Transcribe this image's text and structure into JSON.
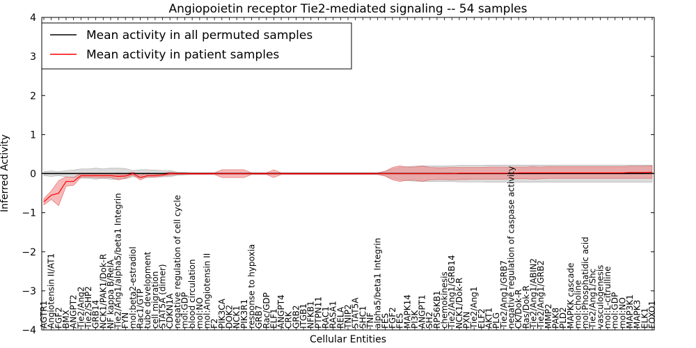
{
  "chart_data": {
    "type": "line",
    "title": "Angiopoietin receptor Tie2-mediated signaling -- 54 samples",
    "xlabel": "Cellular Entities",
    "ylabel": "Inferred Activity",
    "ylim": [
      -4,
      4
    ],
    "yticks": [
      -4,
      -3,
      -2,
      -1,
      0,
      1,
      2,
      3,
      4
    ],
    "ytick_labels": [
      "−4",
      "−3",
      "−2",
      "−1",
      "0",
      "1",
      "2",
      "3",
      "4"
    ],
    "legend_position": "upper-left",
    "categories": [
      "AGTR1",
      "Angiotensin II/AT1",
      "FGF2",
      "BMX",
      "ANGPT2",
      "Tie2/Ang2",
      "Tie2/SHP2",
      "GRB14",
      "NCK1/PAK1/Dok-R",
      "NF kappa B/RelA",
      "Tie2/Ang1/alpha5/beta1 Integrin",
      "FYN",
      "mol:beta2-estradiol",
      "Rac1/GTP",
      "tube development",
      "cell migration",
      "STAT5A (dimer)",
      "CDKN1A",
      "negative regulation of cell cycle",
      "mol:GDP",
      "blood circulation",
      "mol:NO",
      "mol:Angiotensin II",
      "F2",
      "PIK3CA",
      "DOK2",
      "NCK1",
      "PIK3R1",
      "response to hypoxia",
      "GRB7",
      "Rac/GDP",
      "ELF1",
      "ANGPT4",
      "CRK",
      "GRB2",
      "ITGB1",
      "NFKB1",
      "PTPN11",
      "RAC1",
      "RASA1",
      "RELA",
      "TNIP2",
      "STAT5A",
      "SHC1",
      "TNF",
      "alpha5/beta1 Integrin",
      "FES",
      "FGF2",
      "FES",
      "MAPK14",
      "PI3K",
      "ANGPT1",
      "SH2",
      "RPS6KB1",
      "chemokinesis",
      "Tie2/Ang1/GRB14",
      "NCK1/Dok-R",
      "PXN",
      "Tie2/Ang1",
      "ELF2",
      "AKT1",
      "PLG",
      "Tie2/Ang1/GRB7",
      "negative regulation of caspase activity",
      "CK/Dok-R",
      "Ras/Dok-R",
      "Tie2/Ang1/ABIN2",
      "Tie2/Ang1/GRB2",
      "MMP2",
      "PAK8",
      "PLD2",
      "MAPKK cascade",
      "mol:choline",
      "mol:Phosphatidic acid",
      "Tie2/Ang1/Shc",
      "vasculogenesis",
      "mol:L-citrulline",
      "mol:GDP",
      "mol:NO",
      "MAP3K1",
      "MAPK3",
      "ELK1",
      "FOXO1"
    ],
    "series": [
      {
        "name": "Mean activity in all permuted samples",
        "color": "#000000",
        "values": [
          0,
          0,
          0,
          0,
          0,
          0,
          0,
          0,
          0,
          0,
          0,
          0,
          0,
          0,
          0,
          0,
          0,
          0,
          0,
          0,
          0,
          0,
          0,
          0,
          0,
          0,
          0,
          0,
          0,
          0,
          0,
          0,
          0,
          0,
          0,
          0,
          0,
          0,
          0,
          0,
          0,
          0,
          0,
          0,
          0,
          0,
          0,
          0,
          0,
          0,
          0,
          0,
          0,
          0,
          0,
          0,
          0,
          0,
          0,
          0,
          0,
          0,
          0,
          0,
          0,
          0,
          0,
          0,
          0,
          0,
          0,
          0,
          0,
          0,
          0,
          0,
          0,
          0,
          0,
          0,
          0,
          0,
          0
        ],
        "band_lower": [
          -0.05,
          -0.07,
          -0.05,
          -0.08,
          -0.09,
          -0.12,
          -0.12,
          -0.14,
          -0.12,
          -0.14,
          -0.14,
          -0.13,
          -0.08,
          -0.1,
          -0.1,
          -0.09,
          -0.08,
          -0.08,
          -0.04,
          -0.03,
          -0.02,
          -0.02,
          -0.02,
          -0.02,
          -0.02,
          -0.02,
          -0.02,
          -0.02,
          -0.02,
          -0.02,
          -0.02,
          -0.02,
          -0.02,
          -0.02,
          -0.02,
          -0.02,
          -0.02,
          -0.02,
          -0.02,
          -0.02,
          -0.02,
          -0.02,
          -0.02,
          -0.02,
          -0.02,
          -0.02,
          -0.06,
          -0.12,
          -0.16,
          -0.18,
          -0.19,
          -0.2,
          -0.2,
          -0.2,
          -0.2,
          -0.2,
          -0.21,
          -0.21,
          -0.21,
          -0.21,
          -0.22,
          -0.22,
          -0.22,
          -0.22,
          -0.22,
          -0.22,
          -0.22,
          -0.22,
          -0.22,
          -0.22,
          -0.22,
          -0.22,
          -0.22,
          -0.22,
          -0.22,
          -0.22,
          -0.22,
          -0.22,
          -0.22,
          -0.22,
          -0.22,
          -0.22,
          -0.22
        ],
        "band_upper": [
          0.05,
          0.07,
          0.05,
          0.08,
          0.09,
          0.12,
          0.12,
          0.14,
          0.12,
          0.14,
          0.14,
          0.13,
          0.08,
          0.1,
          0.1,
          0.09,
          0.08,
          0.08,
          0.04,
          0.03,
          0.02,
          0.02,
          0.02,
          0.02,
          0.02,
          0.02,
          0.02,
          0.02,
          0.02,
          0.02,
          0.02,
          0.02,
          0.02,
          0.02,
          0.02,
          0.02,
          0.02,
          0.02,
          0.02,
          0.02,
          0.02,
          0.02,
          0.02,
          0.02,
          0.02,
          0.02,
          0.06,
          0.12,
          0.16,
          0.18,
          0.19,
          0.2,
          0.2,
          0.2,
          0.2,
          0.2,
          0.21,
          0.21,
          0.21,
          0.21,
          0.22,
          0.22,
          0.22,
          0.22,
          0.22,
          0.22,
          0.22,
          0.22,
          0.22,
          0.22,
          0.22,
          0.22,
          0.22,
          0.22,
          0.22,
          0.22,
          0.22,
          0.22,
          0.22,
          0.22,
          0.22,
          0.22,
          0.22
        ]
      },
      {
        "name": "Mean activity in patient samples",
        "color": "#ff0000",
        "values": [
          -0.72,
          -0.55,
          -0.5,
          -0.2,
          -0.2,
          -0.05,
          -0.05,
          -0.05,
          -0.05,
          -0.05,
          -0.07,
          -0.06,
          0,
          -0.1,
          -0.05,
          -0.05,
          -0.03,
          0,
          0,
          0,
          0,
          0,
          0,
          0,
          0,
          0,
          0,
          0,
          0,
          0,
          0,
          0,
          0,
          0,
          0,
          0,
          0,
          0,
          0,
          0,
          0,
          0,
          0,
          0,
          0,
          0,
          0,
          0,
          0,
          0,
          0,
          0,
          0,
          0,
          0,
          0,
          0.01,
          0.01,
          0.01,
          0.01,
          0.01,
          0.01,
          0.01,
          0.01,
          0.02,
          0.02,
          0.02,
          0.02,
          0.02,
          0.02,
          0.02,
          0.02,
          0.02,
          0.02,
          0.02,
          0.02,
          0.02,
          0.02,
          0.02,
          0.03,
          0.03,
          0.03,
          0.04
        ],
        "band_lower": [
          -0.8,
          -0.66,
          -0.82,
          -0.32,
          -0.3,
          -0.09,
          -0.09,
          -0.1,
          -0.1,
          -0.1,
          -0.16,
          -0.12,
          -0.04,
          -0.16,
          -0.08,
          -0.09,
          -0.06,
          -0.04,
          -0.02,
          -0.02,
          -0.02,
          -0.02,
          -0.02,
          -0.02,
          -0.1,
          -0.1,
          -0.1,
          -0.1,
          -0.02,
          -0.02,
          -0.02,
          -0.1,
          -0.02,
          -0.02,
          -0.02,
          -0.02,
          -0.02,
          -0.02,
          -0.02,
          -0.02,
          -0.02,
          -0.02,
          -0.02,
          -0.02,
          -0.02,
          -0.02,
          -0.06,
          -0.16,
          -0.2,
          -0.17,
          -0.17,
          -0.2,
          -0.16,
          -0.15,
          -0.15,
          -0.16,
          -0.15,
          -0.15,
          -0.14,
          -0.14,
          -0.14,
          -0.14,
          -0.14,
          -0.13,
          -0.13,
          -0.13,
          -0.14,
          -0.13,
          -0.12,
          -0.12,
          -0.12,
          -0.12,
          -0.12,
          -0.12,
          -0.12,
          -0.12,
          -0.12,
          -0.12,
          -0.12,
          -0.12,
          -0.12,
          -0.12,
          -0.12
        ],
        "band_upper": [
          -0.64,
          -0.44,
          -0.18,
          -0.08,
          -0.1,
          0.01,
          0.01,
          0,
          0,
          0,
          0.02,
          0,
          0.04,
          -0.04,
          0.02,
          -0.01,
          0,
          0.04,
          0.02,
          0.02,
          0.02,
          0.02,
          0.02,
          0.02,
          0.1,
          0.1,
          0.1,
          0.1,
          0.02,
          0.02,
          0.02,
          0.1,
          0.02,
          0.02,
          0.02,
          0.02,
          0.02,
          0.02,
          0.02,
          0.02,
          0.02,
          0.02,
          0.02,
          0.02,
          0.02,
          0.02,
          0.06,
          0.16,
          0.2,
          0.17,
          0.17,
          0.2,
          0.16,
          0.15,
          0.15,
          0.16,
          0.16,
          0.16,
          0.16,
          0.16,
          0.17,
          0.17,
          0.17,
          0.17,
          0.17,
          0.17,
          0.18,
          0.17,
          0.18,
          0.18,
          0.18,
          0.18,
          0.18,
          0.18,
          0.18,
          0.18,
          0.18,
          0.18,
          0.18,
          0.19,
          0.19,
          0.19,
          0.2
        ]
      }
    ]
  }
}
